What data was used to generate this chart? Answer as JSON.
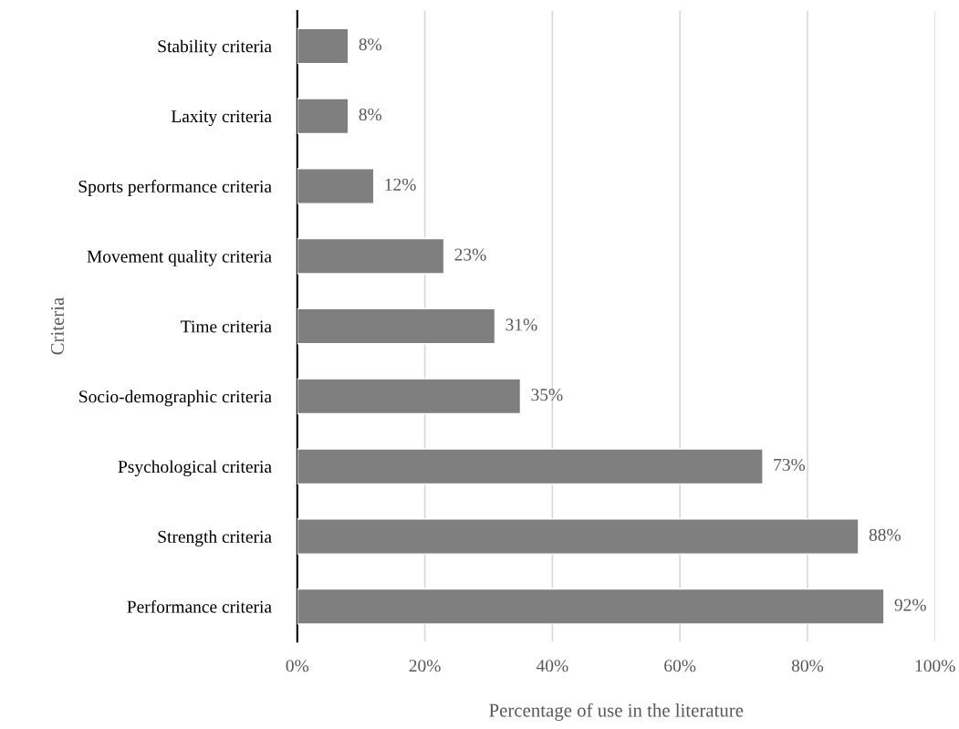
{
  "chart_data": {
    "type": "bar",
    "orientation": "horizontal",
    "xlabel": "Percentage of use in the literature",
    "ylabel": "Criteria",
    "categories": [
      "Stability criteria",
      "Laxity criteria",
      "Sports performance criteria",
      "Movement quality criteria",
      "Time criteria",
      "Socio-demographic criteria",
      "Psychological criteria",
      "Strength criteria",
      "Performance criteria"
    ],
    "values": [
      8,
      8,
      12,
      23,
      31,
      35,
      73,
      88,
      92
    ],
    "value_labels": [
      "8%",
      "8%",
      "12%",
      "23%",
      "31%",
      "35%",
      "73%",
      "88%",
      "92%"
    ],
    "color": "#7f7f7f",
    "xlim": [
      0,
      100
    ],
    "xticks": [
      {
        "value": 0,
        "label": "0%"
      },
      {
        "value": 20,
        "label": "20%"
      },
      {
        "value": 40,
        "label": "40%"
      },
      {
        "value": 60,
        "label": "60%"
      },
      {
        "value": 80,
        "label": "80%"
      },
      {
        "value": 100,
        "label": "100%"
      }
    ],
    "grid": "x",
    "legend": false
  }
}
